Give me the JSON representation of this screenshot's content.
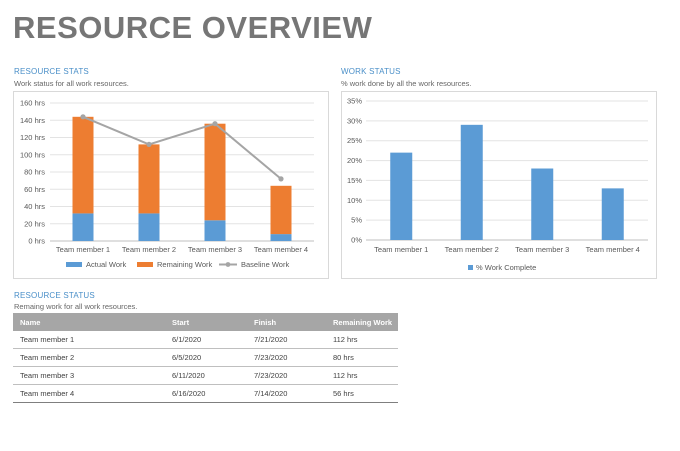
{
  "page": {
    "title": "RESOURCE OVERVIEW"
  },
  "resource_stats": {
    "title": "RESOURCE STATS",
    "subtitle": "Work status for all work resources.",
    "legend": [
      "Actual Work",
      "Remaining Work",
      "Baseline Work"
    ]
  },
  "work_status": {
    "title": "WORK STATUS",
    "subtitle": "% work done by all the work resources.",
    "legend": [
      "% Work Complete"
    ]
  },
  "resource_status": {
    "title": "RESOURCE STATUS",
    "subtitle": "Remaing work for all work resources.",
    "columns": [
      "Name",
      "Start",
      "Finish",
      "Remaining Work"
    ],
    "rows": [
      [
        "Team member 1",
        "6/1/2020",
        "7/21/2020",
        "112 hrs"
      ],
      [
        "Team member 2",
        "6/5/2020",
        "7/23/2020",
        "80 hrs"
      ],
      [
        "Team member 3",
        "6/11/2020",
        "7/23/2020",
        "112 hrs"
      ],
      [
        "Team member 4",
        "6/16/2020",
        "7/14/2020",
        "56 hrs"
      ]
    ]
  },
  "colors": {
    "actual": "#5b9bd5",
    "remaining": "#ed7d31",
    "baseline": "#a5a5a5",
    "accent": "#4a8fc8"
  },
  "chart_data": [
    {
      "type": "bar",
      "stacked": true,
      "categories": [
        "Team member 1",
        "Team member 2",
        "Team member 3",
        "Team member 4"
      ],
      "series": [
        {
          "name": "Actual Work",
          "kind": "bar",
          "values": [
            32,
            32,
            24,
            8
          ]
        },
        {
          "name": "Remaining Work",
          "kind": "bar",
          "values": [
            112,
            80,
            112,
            56
          ]
        },
        {
          "name": "Baseline Work",
          "kind": "line",
          "values": [
            144,
            112,
            136,
            72
          ]
        }
      ],
      "ylim": [
        0,
        160
      ],
      "yticks": [
        "0 hrs",
        "20 hrs",
        "40 hrs",
        "60 hrs",
        "80 hrs",
        "100 hrs",
        "120 hrs",
        "140 hrs",
        "160 hrs"
      ],
      "grid": true,
      "legend_position": "bottom"
    },
    {
      "type": "bar",
      "categories": [
        "Team member 1",
        "Team member 2",
        "Team member 3",
        "Team member 4"
      ],
      "series": [
        {
          "name": "% Work Complete",
          "values": [
            22,
            29,
            18,
            13
          ]
        }
      ],
      "ylim": [
        0,
        35
      ],
      "yticks": [
        "0%",
        "5%",
        "10%",
        "15%",
        "20%",
        "25%",
        "30%",
        "35%"
      ],
      "grid": true,
      "legend_position": "bottom"
    }
  ]
}
